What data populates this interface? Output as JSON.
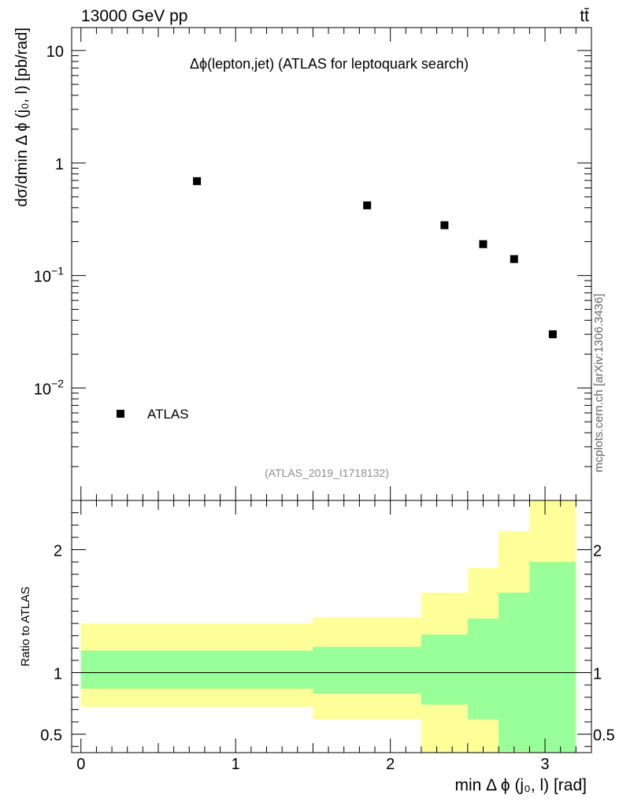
{
  "header": {
    "energy": "13000 GeV pp",
    "process": "tt̄"
  },
  "side_credit": "mcplots.cern.ch [arXiv:1306.3436]",
  "colors": {
    "yellow_band": "#ffff99",
    "green_band": "#99ff99",
    "marker": "#000000",
    "frame": "#000000"
  },
  "chart_data": [
    {
      "type": "scatter",
      "title": "Δϕ(lepton,jet) (ATLAS for leptoquark search)",
      "analysis_id": "(ATLAS_2019_I1718132)",
      "ylabel": "dσ/dmin Δ ϕ (j₀, l) [pb/rad]",
      "yscale": "log",
      "ylim": [
        0.001,
        16
      ],
      "xlim": [
        -0.06,
        3.3
      ],
      "y_ticks": [
        {
          "v": 0.01,
          "base": "10",
          "exp": "−2"
        },
        {
          "v": 0.1,
          "base": "10",
          "exp": "−1"
        },
        {
          "v": 1,
          "base": "1",
          "exp": ""
        },
        {
          "v": 10,
          "base": "10",
          "exp": ""
        }
      ],
      "legend": {
        "label": "ATLAS",
        "position": "bottom-left"
      },
      "series": [
        {
          "name": "ATLAS",
          "x": [
            0.75,
            1.85,
            2.35,
            2.6,
            2.8,
            3.05
          ],
          "y": [
            0.69,
            0.42,
            0.28,
            0.19,
            0.14,
            0.03
          ]
        }
      ]
    },
    {
      "type": "area",
      "ylabel": "Ratio to ATLAS",
      "xlabel": "min Δ ϕ (j₀, l) [rad]",
      "xlim": [
        -0.06,
        3.3
      ],
      "ylim": [
        0.35,
        2.4
      ],
      "x_tick_labels": [
        "0",
        "1",
        "2",
        "3"
      ],
      "y_tick_labels": [
        "0.5",
        "1",
        "2"
      ],
      "reference_line": 1,
      "bins": [
        0,
        1.5,
        2.2,
        2.5,
        2.7,
        2.9,
        3.2
      ],
      "yellow_band": {
        "low": [
          0.72,
          0.62,
          0.33,
          0.33,
          0.33,
          0.33
        ],
        "high": [
          1.4,
          1.45,
          1.65,
          1.85,
          2.15,
          2.6
        ]
      },
      "green_band": {
        "low": [
          0.87,
          0.83,
          0.74,
          0.62,
          0.36,
          0.33
        ],
        "high": [
          1.18,
          1.21,
          1.31,
          1.44,
          1.65,
          1.9
        ]
      }
    }
  ]
}
